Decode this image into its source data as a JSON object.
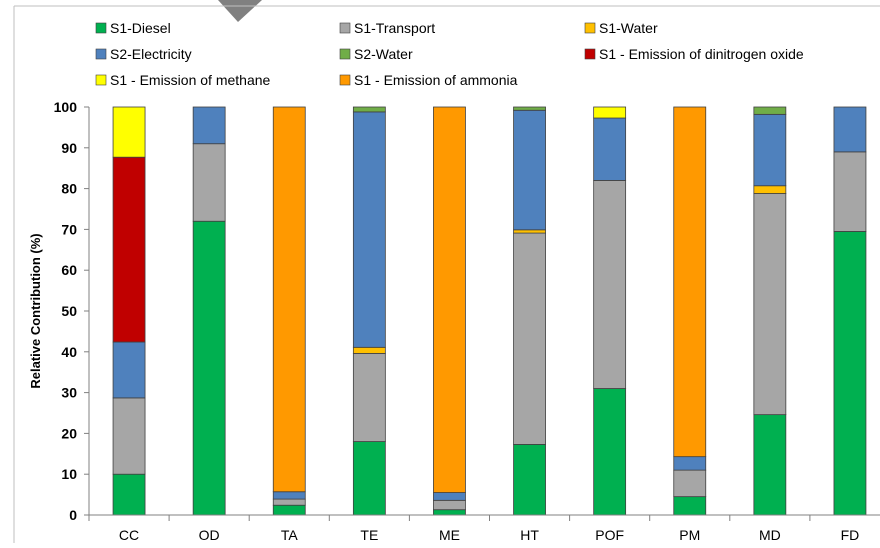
{
  "chart_data": {
    "type": "bar",
    "stacked": true,
    "title": "",
    "xlabel": "",
    "ylabel": "Relative Contribution (%)",
    "ylim": [
      0,
      100
    ],
    "yticks": [
      0,
      10,
      20,
      30,
      40,
      50,
      60,
      70,
      80,
      90,
      100
    ],
    "grid": false,
    "legend_position": "top",
    "categories": [
      "CC",
      "OD",
      "TA",
      "TE",
      "ME",
      "HT",
      "POF",
      "PM",
      "MD",
      "FD"
    ],
    "series": [
      {
        "name": "S1-Diesel",
        "color": "#00b050",
        "values": [
          10,
          72,
          2.4,
          18,
          1.3,
          17.3,
          31,
          4.5,
          24.6,
          69.5
        ]
      },
      {
        "name": "S1-Transport",
        "color": "#a6a6a6",
        "values": [
          18.7,
          19,
          1.5,
          21.6,
          2.3,
          51.8,
          51,
          6.5,
          54.2,
          19.5
        ]
      },
      {
        "name": "S1-Water",
        "color": "#ffc000",
        "values": [
          0,
          0,
          0,
          1.5,
          0,
          0.8,
          0,
          0,
          1.9,
          0
        ]
      },
      {
        "name": "S2-Electricity",
        "color": "#4f81bd",
        "values": [
          13.7,
          9,
          1.8,
          57.7,
          1.9,
          29.3,
          15.3,
          3.3,
          17.5,
          11
        ]
      },
      {
        "name": "S2-Water",
        "color": "#70ad47",
        "values": [
          0,
          0,
          0,
          1.2,
          0,
          0.8,
          0,
          0,
          1.8,
          0
        ]
      },
      {
        "name": "S1 - Emission of dinitrogen oxide",
        "color": "#c00000",
        "values": [
          45.3,
          0,
          0,
          0,
          0,
          0,
          0,
          0,
          0,
          0
        ]
      },
      {
        "name": "S1 - Emission of methane",
        "color": "#ffff00",
        "values": [
          12.3,
          0,
          0,
          0,
          0,
          0,
          2.7,
          0,
          0,
          0
        ]
      },
      {
        "name": "S1 - Emission of ammonia",
        "color": "#ff9900",
        "values": [
          0,
          0,
          94.3,
          0,
          94.5,
          0,
          0,
          85.7,
          0,
          0
        ]
      }
    ]
  }
}
